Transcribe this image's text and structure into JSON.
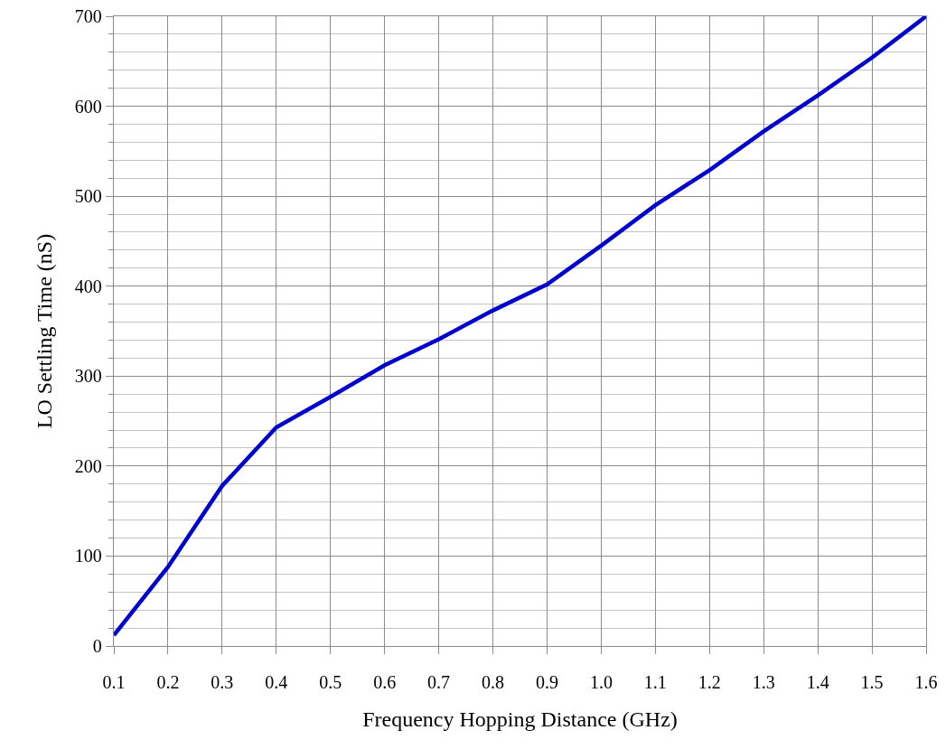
{
  "chart_data": {
    "type": "line",
    "xlabel": "Frequency Hopping Distance (GHz)",
    "ylabel": "LO Settling Time (nS)",
    "x": [
      0.1,
      0.2,
      0.3,
      0.4,
      0.5,
      0.6,
      0.7,
      0.8,
      0.9,
      1.0,
      1.1,
      1.2,
      1.3,
      1.4,
      1.5,
      1.6
    ],
    "series": [
      {
        "color": "#0000cc",
        "values": [
          12,
          88,
          178,
          243,
          277,
          312,
          341,
          373,
          402,
          445,
          490,
          529,
          572,
          612,
          654,
          700
        ]
      }
    ],
    "xlim": [
      0.1,
      1.6
    ],
    "xticks": [
      {
        "value": 0.1,
        "label": "0.1"
      },
      {
        "value": 0.2,
        "label": "0.2"
      },
      {
        "value": 0.3,
        "label": "0.3"
      },
      {
        "value": 0.4,
        "label": "0.4"
      },
      {
        "value": 0.5,
        "label": "0.5"
      },
      {
        "value": 0.6,
        "label": "0.6"
      },
      {
        "value": 0.7,
        "label": "0.7"
      },
      {
        "value": 0.8,
        "label": "0.8"
      },
      {
        "value": 0.9,
        "label": "0.9"
      },
      {
        "value": 1.0,
        "label": "1.0"
      },
      {
        "value": 1.1,
        "label": "1.1"
      },
      {
        "value": 1.2,
        "label": "1.2"
      },
      {
        "value": 1.3,
        "label": "1.3"
      },
      {
        "value": 1.4,
        "label": "1.4"
      },
      {
        "value": 1.5,
        "label": "1.5"
      },
      {
        "value": 1.6,
        "label": "1.6"
      }
    ],
    "ylim": [
      0,
      700
    ],
    "yticks": [
      0,
      100,
      200,
      300,
      400,
      500,
      600,
      700
    ],
    "grid": true,
    "marker": "none",
    "line_style": "solid"
  }
}
